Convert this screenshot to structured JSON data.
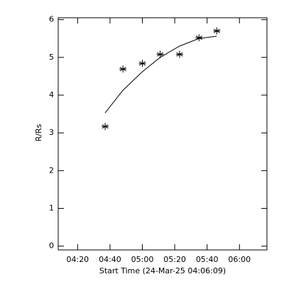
{
  "chart_data": {
    "type": "scatter",
    "x_label": "Start Time (24-Mar-25 04:06:09)",
    "y_label": "R/Rs",
    "x": [
      "04:37",
      "04:48",
      "05:00",
      "05:11",
      "05:23",
      "05:35",
      "05:46"
    ],
    "series": [
      {
        "color": "#000000",
        "marker": "asterisk",
        "values": [
          3.17,
          4.69,
          4.84,
          5.08,
          5.08,
          5.52,
          5.7
        ]
      },
      {
        "color": "#000000",
        "marker": "line",
        "values": [
          3.53,
          4.13,
          4.62,
          5.0,
          5.3,
          5.5,
          5.56
        ]
      }
    ],
    "xlim": [
      "04:08",
      "06:17"
    ],
    "xticks": [
      "04:20",
      "04:40",
      "05:00",
      "05:20",
      "05:40",
      "06:00"
    ],
    "ylim": [
      -0.1,
      6.05
    ],
    "yticks": [
      0,
      1,
      2,
      3,
      4,
      5,
      6
    ],
    "grid": false
  }
}
